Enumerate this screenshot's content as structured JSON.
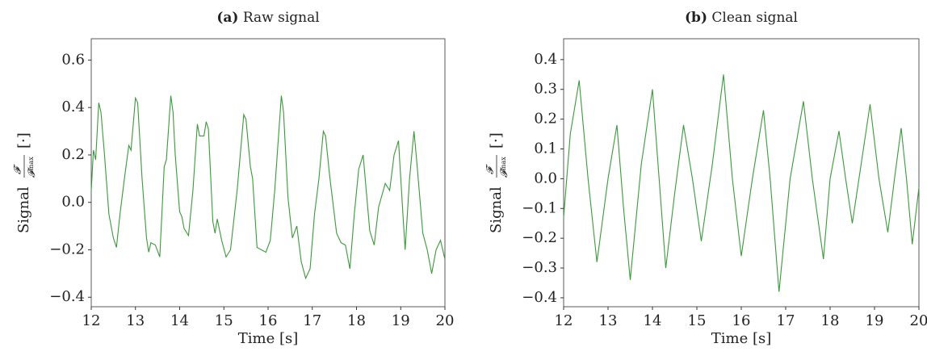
{
  "chart_data": [
    {
      "type": "line",
      "panel": "(a)",
      "title": "Raw signal",
      "ylabel": "Signal",
      "ylabel_num": "𝓕",
      "ylabel_den": "𝓕",
      "ylabel_den_sub": "max",
      "ylabel_unit": "[·]",
      "xlabel": "Time",
      "xlabel_unit": "[s]",
      "xlim": [
        12,
        20
      ],
      "xticks": [
        12,
        13,
        14,
        15,
        16,
        17,
        18,
        19,
        20
      ],
      "ylim": [
        -0.44,
        0.69
      ],
      "yticks": [
        {
          "value": -0.4,
          "label": "−0.4"
        },
        {
          "value": -0.2,
          "label": "−0.2"
        },
        {
          "value": 0,
          "label": "0.0"
        },
        0.2,
        0.4,
        0.6
      ],
      "series": [
        {
          "color": "#3a9a3a",
          "x": [
            12.0,
            12.05,
            12.1,
            12.17,
            12.22,
            12.3,
            12.4,
            12.5,
            12.57,
            12.65,
            12.75,
            12.85,
            12.9,
            13.0,
            13.05,
            13.15,
            13.25,
            13.3,
            13.35,
            13.45,
            13.55,
            13.65,
            13.7,
            13.8,
            13.85,
            13.9,
            14.0,
            14.05,
            14.1,
            14.2,
            14.3,
            14.4,
            14.45,
            14.55,
            14.6,
            14.65,
            14.75,
            14.8,
            14.85,
            14.95,
            15.05,
            15.15,
            15.3,
            15.45,
            15.5,
            15.6,
            15.65,
            15.75,
            15.85,
            15.95,
            16.05,
            16.15,
            16.3,
            16.35,
            16.45,
            16.55,
            16.65,
            16.75,
            16.85,
            16.95,
            17.05,
            17.15,
            17.25,
            17.3,
            17.4,
            17.55,
            17.65,
            17.75,
            17.85,
            17.95,
            18.05,
            18.15,
            18.3,
            18.4,
            18.5,
            18.65,
            18.75,
            18.85,
            18.95,
            19.05,
            19.1,
            19.2,
            19.3,
            19.35,
            19.5,
            19.6,
            19.7,
            19.8,
            19.9,
            20.0
          ],
          "values": [
            0.05,
            0.22,
            0.18,
            0.42,
            0.38,
            0.2,
            -0.05,
            -0.15,
            -0.19,
            -0.05,
            0.1,
            0.24,
            0.22,
            0.44,
            0.42,
            0.1,
            -0.15,
            -0.21,
            -0.17,
            -0.18,
            -0.23,
            0.15,
            0.18,
            0.45,
            0.38,
            0.2,
            -0.04,
            -0.06,
            -0.11,
            -0.14,
            0.05,
            0.33,
            0.28,
            0.28,
            0.34,
            0.31,
            -0.08,
            -0.13,
            -0.07,
            -0.16,
            -0.23,
            -0.2,
            0.05,
            0.37,
            0.35,
            0.15,
            0.1,
            -0.19,
            -0.2,
            -0.21,
            -0.16,
            0.05,
            0.45,
            0.38,
            0.02,
            -0.15,
            -0.1,
            -0.25,
            -0.32,
            -0.28,
            -0.05,
            0.1,
            0.3,
            0.28,
            0.1,
            -0.13,
            -0.17,
            -0.18,
            -0.28,
            -0.05,
            0.14,
            0.2,
            -0.12,
            -0.18,
            -0.02,
            0.08,
            0.05,
            0.2,
            0.26,
            -0.05,
            -0.2,
            0.1,
            0.3,
            0.2,
            -0.13,
            -0.2,
            -0.3,
            -0.2,
            -0.16,
            -0.24
          ]
        }
      ]
    },
    {
      "type": "line",
      "panel": "(b)",
      "title": "Clean signal",
      "ylabel": "Signal",
      "ylabel_num": "𝓕",
      "ylabel_den": "𝓕",
      "ylabel_den_sub": "max",
      "ylabel_unit": "[·]",
      "xlabel": "Time",
      "xlabel_unit": "[s]",
      "xlim": [
        12,
        20
      ],
      "xticks": [
        12,
        13,
        14,
        15,
        16,
        17,
        18,
        19,
        20
      ],
      "ylim": [
        -0.43,
        0.47
      ],
      "yticks": [
        {
          "value": -0.4,
          "label": "−0.4"
        },
        {
          "value": -0.3,
          "label": "−0.3"
        },
        {
          "value": -0.2,
          "label": "−0.2"
        },
        {
          "value": -0.1,
          "label": "−0.1"
        },
        {
          "value": 0,
          "label": "0.0"
        },
        0.1,
        0.2,
        0.3,
        0.4
      ],
      "series": [
        {
          "color": "#3a9a3a",
          "x": [
            12.0,
            12.15,
            12.35,
            12.55,
            12.75,
            13.0,
            13.2,
            13.35,
            13.5,
            13.75,
            14.0,
            14.15,
            14.3,
            14.5,
            14.7,
            14.9,
            15.1,
            15.35,
            15.6,
            15.8,
            16.0,
            16.25,
            16.5,
            16.65,
            16.85,
            17.1,
            17.4,
            17.6,
            17.85,
            18.0,
            18.2,
            18.35,
            18.5,
            18.7,
            18.9,
            19.1,
            19.3,
            19.45,
            19.6,
            19.72,
            19.85,
            20.0
          ],
          "values": [
            -0.13,
            0.15,
            0.33,
            0.0,
            -0.28,
            0.0,
            0.18,
            -0.1,
            -0.34,
            0.05,
            0.3,
            0.0,
            -0.3,
            -0.05,
            0.18,
            0.0,
            -0.21,
            0.05,
            0.35,
            0.0,
            -0.26,
            0.0,
            0.23,
            0.0,
            -0.38,
            0.0,
            0.26,
            0.0,
            -0.27,
            0.0,
            0.16,
            0.0,
            -0.15,
            0.05,
            0.25,
            0.0,
            -0.18,
            0.0,
            0.17,
            0.0,
            -0.22,
            -0.03
          ]
        }
      ]
    }
  ]
}
